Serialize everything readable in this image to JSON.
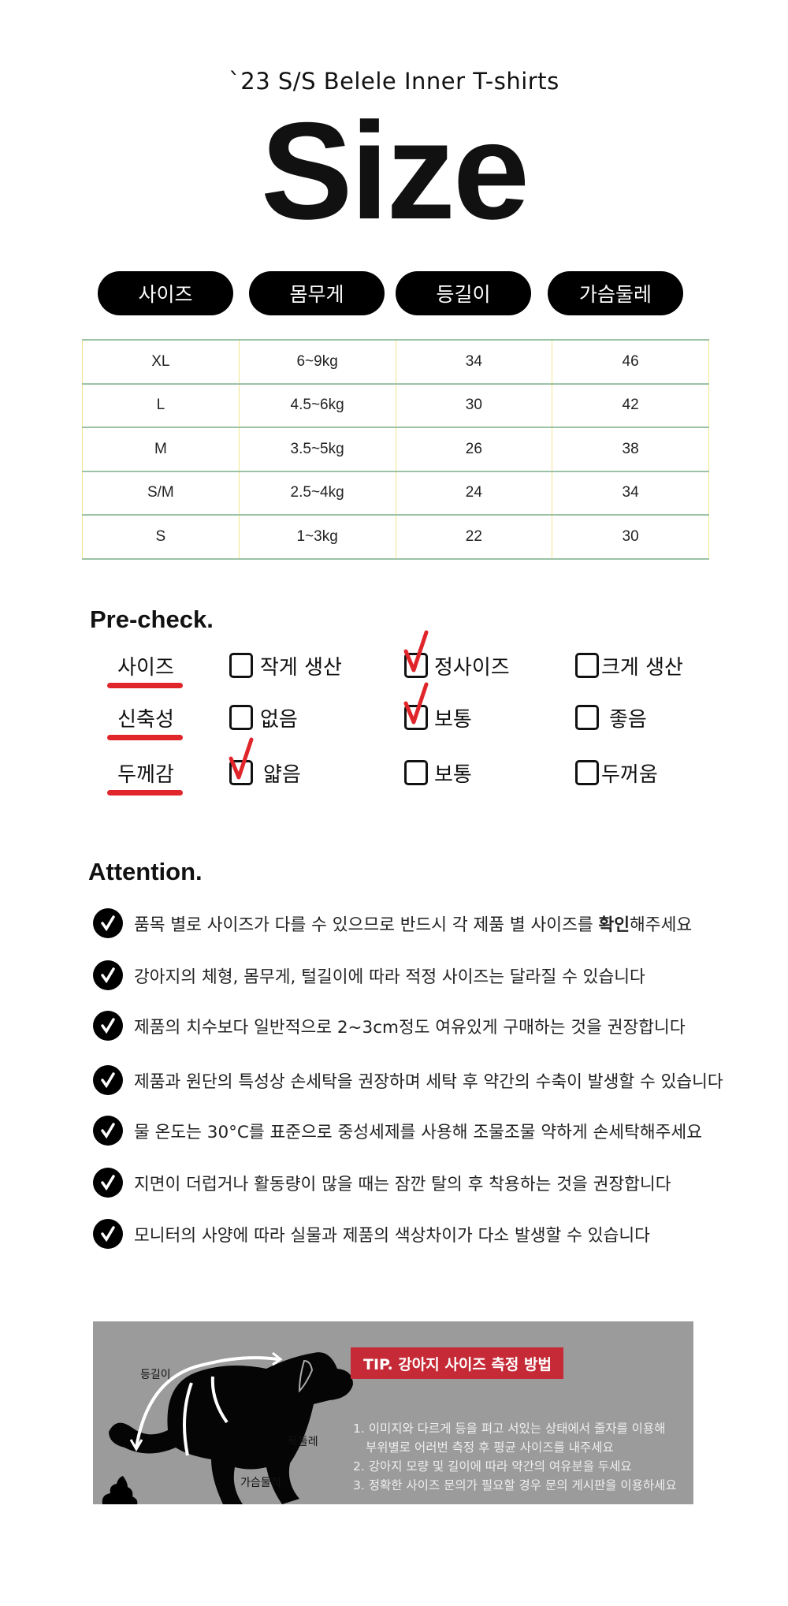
{
  "header": {
    "subtitle": "`23 S/S Belele Inner T-shirts",
    "title": "Size"
  },
  "size_table": {
    "columns": [
      "사이즈",
      "몸무게",
      "등길이",
      "가슴둘레"
    ],
    "rows": [
      [
        "XL",
        "6~9kg",
        "34",
        "46"
      ],
      [
        "L",
        "4.5~6kg",
        "30",
        "42"
      ],
      [
        "M",
        "3.5~5kg",
        "26",
        "38"
      ],
      [
        "S/M",
        "2.5~4kg",
        "24",
        "34"
      ],
      [
        "S",
        "1~3kg",
        "22",
        "30"
      ]
    ]
  },
  "precheck": {
    "title": "Pre-check.",
    "rows": [
      {
        "label": "사이즈",
        "options": [
          "작게 생산",
          "정사이즈",
          "크게 생산"
        ],
        "checked": 1
      },
      {
        "label": "신축성",
        "options": [
          "없음",
          "보통",
          "좋음"
        ],
        "checked": 1
      },
      {
        "label": "두께감",
        "options": [
          "얇음",
          "보통",
          "두꺼움"
        ],
        "checked": 0
      }
    ],
    "accent": "#e0262b"
  },
  "attention": {
    "title": "Attention.",
    "item1": {
      "pre": "품목 별로 사이즈가 다를 수 있으므로 반드시 각 제품 별 사이즈를 ",
      "bold": "확인",
      "post": "해주세요"
    },
    "items": [
      "강아지의 체형, 몸무게, 털길이에 따라 적정 사이즈는 달라질 수 있습니다",
      "제품의 치수보다 일반적으로 2~3cm정도 여유있게 구매하는 것을 권장합니다",
      "제품과 원단의 특성상 손세탁을 권장하며 세탁 후 약간의 수축이 발생할 수 있습니다",
      "물 온도는 30°C를 표준으로 중성세제를 사용해 조물조물 약하게 손세탁해주세요",
      "지면이 더럽거나 활동량이 많을 때는 잠깐 탈의 후 착용하는 것을 권장합니다",
      "모니터의 사양에 따라 실물과 제품의 색상차이가 다소 발생할 수 있습니다"
    ]
  },
  "tip": {
    "title": "TIP. 강아지 사이즈 측정 방법",
    "lines": [
      "1. 이미지와 다르게 등을 펴고 서있는 상태에서 줄자를 이용해",
      "부위별로 어러번 측정 후 평균 사이즈를 내주세요",
      "2. 강아지 모량 및 길이에 따라 약간의 여유분을 두세요",
      "3. 정확한 사이즈 문의가 필요할 경우 문의 게시판을 이용하세요"
    ],
    "diagram_labels": {
      "back": "등길이",
      "neck": "목둘레",
      "chest": "가슴둘레"
    },
    "accent": "#c62a36"
  }
}
